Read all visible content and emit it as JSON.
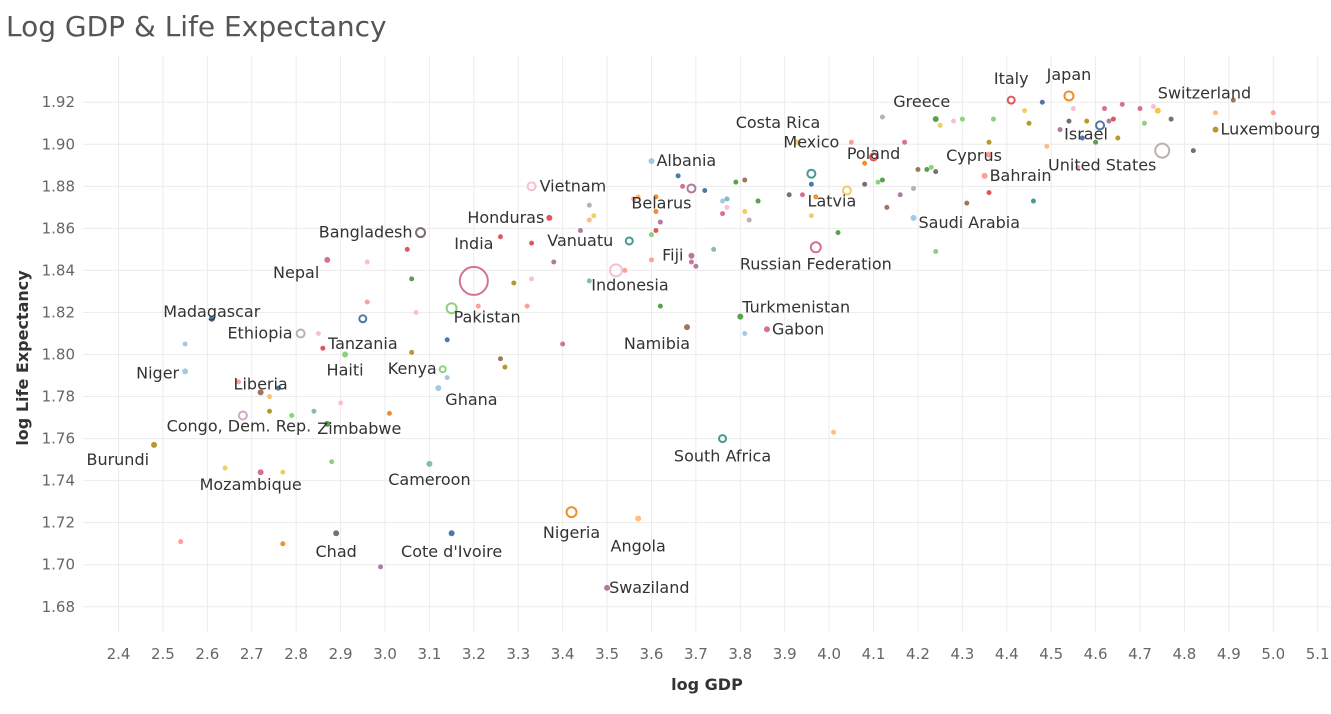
{
  "chart_data": {
    "type": "scatter",
    "title": "Log GDP & Life Expectancy",
    "xlabel": "log GDP",
    "ylabel": "log Life Expectancy",
    "xlim": [
      2.32,
      5.13
    ],
    "ylim": [
      1.668,
      1.942
    ],
    "xticks": [
      2.4,
      2.5,
      2.6,
      2.7,
      2.8,
      2.9,
      3.0,
      3.1,
      3.2,
      3.3,
      3.4,
      3.5,
      3.6,
      3.7,
      3.8,
      3.9,
      4.0,
      4.1,
      4.2,
      4.3,
      4.4,
      4.5,
      4.6,
      4.7,
      4.8,
      4.9,
      5.0,
      5.1
    ],
    "yticks": [
      1.68,
      1.7,
      1.72,
      1.74,
      1.76,
      1.78,
      1.8,
      1.82,
      1.84,
      1.86,
      1.88,
      1.9,
      1.92
    ],
    "grid": true,
    "legend": "none",
    "labeled_points": [
      {
        "name": "Italy",
        "x": 4.41,
        "y": 1.921,
        "r": 3.5,
        "color": "#e15759"
      },
      {
        "name": "Japan",
        "x": 4.54,
        "y": 1.923,
        "r": 4.5,
        "color": "#f28e2b"
      },
      {
        "name": "Switzerland",
        "x": 4.74,
        "y": 1.916,
        "r": 2.5,
        "color": "#edc948"
      },
      {
        "name": "Greece",
        "x": 4.24,
        "y": 1.912,
        "r": 2.5,
        "color": "#59a14f"
      },
      {
        "name": "Israel",
        "x": 4.61,
        "y": 1.909,
        "r": 4,
        "color": "#4e79a7"
      },
      {
        "name": "Luxembourg",
        "x": 4.87,
        "y": 1.907,
        "r": 2.5,
        "color": "#b6992d"
      },
      {
        "name": "Costa Rica",
        "x": 3.93,
        "y": 1.901,
        "r": 2.5,
        "color": "#f1ce63"
      },
      {
        "name": "Poland",
        "x": 4.1,
        "y": 1.894,
        "r": 3.5,
        "color": "#e15759"
      },
      {
        "name": "Cyprus",
        "x": 4.36,
        "y": 1.895,
        "r": 2.5,
        "color": "#ff9d9a"
      },
      {
        "name": "United States",
        "x": 4.75,
        "y": 1.897,
        "r": 7,
        "color": "#bab0ac"
      },
      {
        "name": "Mexico",
        "x": 3.96,
        "y": 1.886,
        "r": 4,
        "color": "#499894"
      },
      {
        "name": "Bahrain",
        "x": 4.35,
        "y": 1.885,
        "r": 2.5,
        "color": "#ff9d9a"
      },
      {
        "name": "Albania",
        "x": 3.6,
        "y": 1.892,
        "r": 2.5,
        "color": "#a0cbe8"
      },
      {
        "name": "Vietnam",
        "x": 3.33,
        "y": 1.88,
        "r": 4,
        "color": "#fabfd2"
      },
      {
        "name": "Latvia",
        "x": 4.04,
        "y": 1.878,
        "r": 4,
        "color": "#f1ce63"
      },
      {
        "name": "Saudi Arabia",
        "x": 4.19,
        "y": 1.865,
        "r": 2.5,
        "color": "#a0cbe8"
      },
      {
        "name": "Honduras",
        "x": 3.37,
        "y": 1.865,
        "r": 2.5,
        "color": "#e15759"
      },
      {
        "name": "Belarus",
        "x": 3.69,
        "y": 1.879,
        "r": 4,
        "color": "#b07aa1"
      },
      {
        "name": "Bangladesh",
        "x": 3.08,
        "y": 1.858,
        "r": 4.5,
        "color": "#79706e"
      },
      {
        "name": "Vanuatu",
        "x": 3.55,
        "y": 1.854,
        "r": 3.5,
        "color": "#499894"
      },
      {
        "name": "Fiji",
        "x": 3.69,
        "y": 1.847,
        "r": 2.5,
        "color": "#b07aa1"
      },
      {
        "name": "India",
        "x": 3.2,
        "y": 1.835,
        "r": 14,
        "color": "#d37295"
      },
      {
        "name": "Russian Federation",
        "x": 3.97,
        "y": 1.851,
        "r": 5,
        "color": "#d37295"
      },
      {
        "name": "Nepal",
        "x": 2.87,
        "y": 1.845,
        "r": 2.5,
        "color": "#d37295"
      },
      {
        "name": "Indonesia",
        "x": 3.52,
        "y": 1.84,
        "r": 6,
        "color": "#fabfd2"
      },
      {
        "name": "Turkmenistan",
        "x": 3.8,
        "y": 1.818,
        "r": 2.5,
        "color": "#59a14f"
      },
      {
        "name": "Madagascar",
        "x": 2.61,
        "y": 1.817,
        "r": 2.5,
        "color": "#4e79a7"
      },
      {
        "name": "Pakistan",
        "x": 3.15,
        "y": 1.822,
        "r": 5,
        "color": "#8cd17d"
      },
      {
        "name": "Gabon",
        "x": 3.86,
        "y": 1.812,
        "r": 2.5,
        "color": "#d37295"
      },
      {
        "name": "Ethiopia",
        "x": 2.81,
        "y": 1.81,
        "r": 4,
        "color": "#bab0ac"
      },
      {
        "name": "Tanzania",
        "x": 2.95,
        "y": 1.817,
        "r": 3.5,
        "color": "#4e79a7"
      },
      {
        "name": "Namibia",
        "x": 3.68,
        "y": 1.813,
        "r": 2.5,
        "color": "#9d7660"
      },
      {
        "name": "Haiti",
        "x": 2.91,
        "y": 1.8,
        "r": 2.5,
        "color": "#8cd17d"
      },
      {
        "name": "Kenya",
        "x": 3.13,
        "y": 1.793,
        "r": 3,
        "color": "#8cd17d"
      },
      {
        "name": "Liberia",
        "x": 2.72,
        "y": 1.782,
        "r": 2.5,
        "color": "#9d7660"
      },
      {
        "name": "Niger",
        "x": 2.55,
        "y": 1.792,
        "r": 2.5,
        "color": "#a0cbe8"
      },
      {
        "name": "Ghana",
        "x": 3.12,
        "y": 1.784,
        "r": 2.5,
        "color": "#a0cbe8"
      },
      {
        "name": "Congo, Dem. Rep.",
        "x": 2.68,
        "y": 1.771,
        "r": 4,
        "color": "#d4a6c8"
      },
      {
        "name": "Zimbabwe",
        "x": 2.87,
        "y": 1.767,
        "r": 2.5,
        "color": "#59a14f"
      },
      {
        "name": "South Africa",
        "x": 3.76,
        "y": 1.76,
        "r": 3.5,
        "color": "#499894"
      },
      {
        "name": "Burundi",
        "x": 2.48,
        "y": 1.757,
        "r": 2.5,
        "color": "#b6992d"
      },
      {
        "name": "Mozambique",
        "x": 2.72,
        "y": 1.744,
        "r": 2.5,
        "color": "#d37295"
      },
      {
        "name": "Cameroon",
        "x": 3.1,
        "y": 1.748,
        "r": 2.5,
        "color": "#86bcb6"
      },
      {
        "name": "Nigeria",
        "x": 3.42,
        "y": 1.725,
        "r": 5,
        "color": "#f28e2b"
      },
      {
        "name": "Angola",
        "x": 3.57,
        "y": 1.722,
        "r": 2.5,
        "color": "#ffbe7d"
      },
      {
        "name": "Chad",
        "x": 2.89,
        "y": 1.715,
        "r": 2.5,
        "color": "#79706e"
      },
      {
        "name": "Cote d'Ivoire",
        "x": 3.15,
        "y": 1.715,
        "r": 2.5,
        "color": "#4e79a7"
      },
      {
        "name": "Swaziland",
        "x": 3.5,
        "y": 1.689,
        "r": 2.5,
        "color": "#b07aa1"
      }
    ],
    "unlabeled_points": [
      [
        2.54,
        1.711,
        "#ff9d9a"
      ],
      [
        2.77,
        1.71,
        "#f28e2b"
      ],
      [
        2.99,
        1.699,
        "#b07aa1"
      ],
      [
        2.64,
        1.746,
        "#f1ce63"
      ],
      [
        2.77,
        1.744,
        "#f1ce63"
      ],
      [
        2.88,
        1.749,
        "#8cd17d"
      ],
      [
        2.55,
        1.805,
        "#a0cbe8"
      ],
      [
        2.67,
        1.787,
        "#ff9d9a"
      ],
      [
        2.74,
        1.78,
        "#ffbe7d"
      ],
      [
        2.76,
        1.784,
        "#4e79a7"
      ],
      [
        2.74,
        1.773,
        "#b6992d"
      ],
      [
        2.79,
        1.771,
        "#8cd17d"
      ],
      [
        2.84,
        1.773,
        "#86bcb6"
      ],
      [
        2.9,
        1.777,
        "#fabfd2"
      ],
      [
        3.01,
        1.772,
        "#f28e2b"
      ],
      [
        2.86,
        1.803,
        "#e15759"
      ],
      [
        2.85,
        1.81,
        "#fabfd2"
      ],
      [
        2.96,
        1.825,
        "#ff9d9a"
      ],
      [
        2.96,
        1.844,
        "#fabfd2"
      ],
      [
        3.05,
        1.85,
        "#e15759"
      ],
      [
        3.06,
        1.836,
        "#59a14f"
      ],
      [
        3.07,
        1.82,
        "#fabfd2"
      ],
      [
        3.06,
        1.801,
        "#b6992d"
      ],
      [
        3.14,
        1.789,
        "#a0cbe8"
      ],
      [
        3.14,
        1.807,
        "#4e79a7"
      ],
      [
        3.21,
        1.823,
        "#ff9d9a"
      ],
      [
        3.26,
        1.798,
        "#9d7660"
      ],
      [
        3.29,
        1.834,
        "#b6992d"
      ],
      [
        3.32,
        1.823,
        "#ff9d9a"
      ],
      [
        3.26,
        1.856,
        "#e15759"
      ],
      [
        3.33,
        1.836,
        "#fabfd2"
      ],
      [
        3.33,
        1.853,
        "#e15759"
      ],
      [
        3.4,
        1.805,
        "#d37295"
      ],
      [
        3.38,
        1.844,
        "#b07aa1"
      ],
      [
        3.27,
        1.794,
        "#b6992d"
      ],
      [
        3.46,
        1.835,
        "#86bcb6"
      ],
      [
        3.44,
        1.859,
        "#b07aa1"
      ],
      [
        3.46,
        1.864,
        "#ffbe7d"
      ],
      [
        3.47,
        1.866,
        "#f1ce63"
      ],
      [
        3.46,
        1.871,
        "#bab0ac"
      ],
      [
        3.54,
        1.84,
        "#ff9d9a"
      ],
      [
        3.56,
        1.874,
        "#ff9d9a"
      ],
      [
        3.57,
        1.875,
        "#ffbe7d"
      ],
      [
        3.61,
        1.875,
        "#f28e2b"
      ],
      [
        3.61,
        1.868,
        "#f28e2b"
      ],
      [
        3.62,
        1.863,
        "#b07aa1"
      ],
      [
        3.61,
        1.859,
        "#e15759"
      ],
      [
        3.6,
        1.857,
        "#8cd17d"
      ],
      [
        3.6,
        1.845,
        "#ff9d9a"
      ],
      [
        3.62,
        1.823,
        "#59a14f"
      ],
      [
        3.67,
        1.88,
        "#d37295"
      ],
      [
        3.66,
        1.885,
        "#4e79a7"
      ],
      [
        3.72,
        1.878,
        "#4e79a7"
      ],
      [
        3.76,
        1.873,
        "#a0cbe8"
      ],
      [
        3.77,
        1.874,
        "#86bcb6"
      ],
      [
        3.76,
        1.867,
        "#d37295"
      ],
      [
        3.77,
        1.87,
        "#fabfd2"
      ],
      [
        3.74,
        1.85,
        "#86bcb6"
      ],
      [
        3.69,
        1.844,
        "#d37295"
      ],
      [
        3.7,
        1.842,
        "#b07aa1"
      ],
      [
        3.79,
        1.882,
        "#59a14f"
      ],
      [
        3.81,
        1.883,
        "#9d7660"
      ],
      [
        3.82,
        1.864,
        "#bab0ac"
      ],
      [
        3.84,
        1.873,
        "#59a14f"
      ],
      [
        3.81,
        1.868,
        "#f1ce63"
      ],
      [
        3.81,
        1.81,
        "#a0cbe8"
      ],
      [
        3.91,
        1.876,
        "#79706e"
      ],
      [
        3.93,
        1.901,
        "#bab0ac"
      ],
      [
        3.97,
        1.875,
        "#f28e2b"
      ],
      [
        3.96,
        1.866,
        "#f1ce63"
      ],
      [
        3.96,
        1.881,
        "#4e79a7"
      ],
      [
        3.94,
        1.876,
        "#d37295"
      ],
      [
        4.02,
        1.858,
        "#59a14f"
      ],
      [
        4.01,
        1.763,
        "#ffbe7d"
      ],
      [
        4.08,
        1.881,
        "#79706e"
      ],
      [
        4.11,
        1.882,
        "#8cd17d"
      ],
      [
        4.12,
        1.883,
        "#59a14f"
      ],
      [
        4.13,
        1.87,
        "#9d7660"
      ],
      [
        4.16,
        1.876,
        "#b07aa1"
      ],
      [
        4.12,
        1.913,
        "#bab0ac"
      ],
      [
        4.08,
        1.891,
        "#f28e2b"
      ],
      [
        4.17,
        1.901,
        "#d37295"
      ],
      [
        4.2,
        1.888,
        "#9d7660"
      ],
      [
        4.22,
        1.888,
        "#59a14f"
      ],
      [
        4.23,
        1.889,
        "#8cd17d"
      ],
      [
        4.24,
        1.887,
        "#79706e"
      ],
      [
        4.24,
        1.849,
        "#8cd17d"
      ],
      [
        4.19,
        1.879,
        "#bab0ac"
      ],
      [
        4.28,
        1.911,
        "#fabfd2"
      ],
      [
        4.31,
        1.872,
        "#9d7660"
      ],
      [
        4.3,
        1.912,
        "#8cd17d"
      ],
      [
        4.36,
        1.901,
        "#b6992d"
      ],
      [
        4.36,
        1.877,
        "#e15759"
      ],
      [
        4.37,
        1.912,
        "#8cd17d"
      ],
      [
        4.45,
        1.91,
        "#b6992d"
      ],
      [
        4.46,
        1.873,
        "#499894"
      ],
      [
        4.49,
        1.899,
        "#ffbe7d"
      ],
      [
        4.52,
        1.907,
        "#b07aa1"
      ],
      [
        4.54,
        1.911,
        "#79706e"
      ],
      [
        4.57,
        1.903,
        "#4e79a7"
      ],
      [
        4.58,
        1.911,
        "#b6992d"
      ],
      [
        4.6,
        1.901,
        "#59a14f"
      ],
      [
        4.56,
        1.889,
        "#ff9d9a"
      ],
      [
        4.62,
        1.917,
        "#d37295"
      ],
      [
        4.64,
        1.912,
        "#e15759"
      ],
      [
        4.63,
        1.911,
        "#b07aa1"
      ],
      [
        4.65,
        1.903,
        "#b6992d"
      ],
      [
        4.7,
        1.917,
        "#d37295"
      ],
      [
        4.71,
        1.91,
        "#8cd17d"
      ],
      [
        4.73,
        1.918,
        "#fabfd2"
      ],
      [
        4.77,
        1.912,
        "#79706e"
      ],
      [
        4.82,
        1.897,
        "#79706e"
      ],
      [
        4.87,
        1.915,
        "#ffbe7d"
      ],
      [
        4.91,
        1.921,
        "#9d7660"
      ],
      [
        5.0,
        1.915,
        "#ff9d9a"
      ],
      [
        4.44,
        1.916,
        "#f1ce63"
      ],
      [
        4.48,
        1.92,
        "#4e79a7"
      ],
      [
        4.55,
        1.917,
        "#fabfd2"
      ],
      [
        4.66,
        1.919,
        "#d37295"
      ],
      [
        4.25,
        1.909,
        "#f1ce63"
      ],
      [
        4.05,
        1.901,
        "#ff9d9a"
      ]
    ]
  }
}
